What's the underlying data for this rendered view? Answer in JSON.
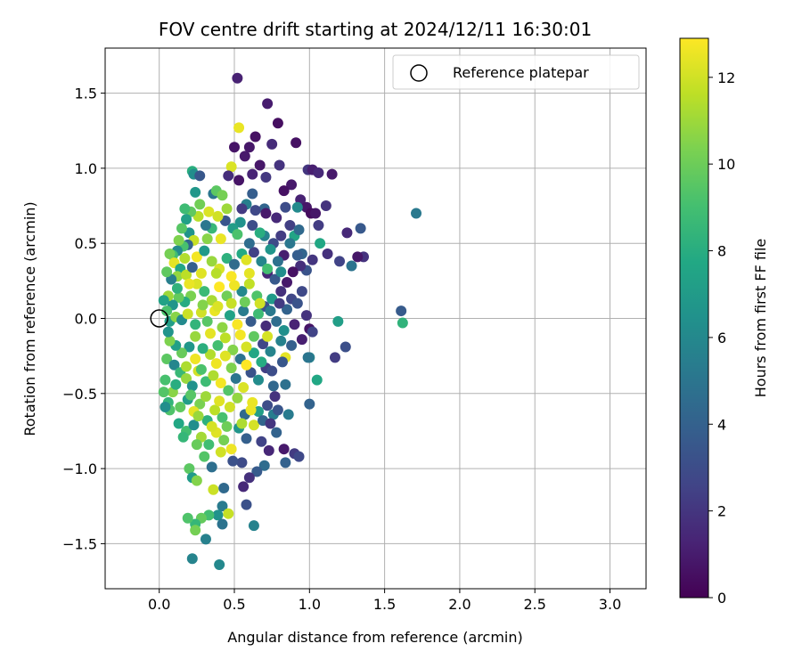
{
  "chart_data": {
    "type": "scatter",
    "title": "FOV centre drift starting at 2024/12/11 16:30:01",
    "xlabel": "Angular distance from reference (arcmin)",
    "ylabel": "Rotation from reference (arcmin)",
    "xlim": [
      -0.36,
      3.24
    ],
    "ylim": [
      -1.8,
      1.8
    ],
    "x_ticks": [
      0.0,
      0.5,
      1.0,
      1.5,
      2.0,
      2.5,
      3.0
    ],
    "x_tick_labels": [
      "0.0",
      "0.5",
      "1.0",
      "1.5",
      "2.0",
      "2.5",
      "3.0"
    ],
    "y_ticks": [
      -1.5,
      -1.0,
      -0.5,
      0.0,
      0.5,
      1.0,
      1.5
    ],
    "y_tick_labels": [
      "−1.5",
      "−1.0",
      "−0.5",
      "0.0",
      "0.5",
      "1.0",
      "1.5"
    ],
    "grid": true,
    "legend": {
      "placement": "top-right",
      "entries": [
        "Reference platepar"
      ]
    },
    "reference_point": {
      "x": 0.0,
      "y": 0.0
    },
    "colorbar": {
      "label": "Hours from first FF file",
      "range": [
        0,
        12.9
      ],
      "ticks": [
        0,
        2,
        4,
        6,
        8,
        10,
        12
      ],
      "tick_labels": [
        "0",
        "2",
        "4",
        "6",
        "8",
        "10",
        "12"
      ],
      "colormap": "viridis"
    },
    "points": [
      [
        0.52,
        1.6,
        1.2
      ],
      [
        0.72,
        1.43,
        1.0
      ],
      [
        0.79,
        1.3,
        0.5
      ],
      [
        0.53,
        1.27,
        12.5
      ],
      [
        0.64,
        1.21,
        0.6
      ],
      [
        0.5,
        1.14,
        0.7
      ],
      [
        0.6,
        1.14,
        0.8
      ],
      [
        0.75,
        1.16,
        1.6
      ],
      [
        0.91,
        1.17,
        0.6
      ],
      [
        0.48,
        1.01,
        12.2
      ],
      [
        0.57,
        1.08,
        0.9
      ],
      [
        0.67,
        1.02,
        0.8
      ],
      [
        0.8,
        1.02,
        1.9
      ],
      [
        0.99,
        0.99,
        2.0
      ],
      [
        1.02,
        0.99,
        1.1
      ],
      [
        1.06,
        0.97,
        1.5
      ],
      [
        1.15,
        0.96,
        0.9
      ],
      [
        0.62,
        0.96,
        1.3
      ],
      [
        0.46,
        0.95,
        1.7
      ],
      [
        0.53,
        0.92,
        0.7
      ],
      [
        0.71,
        0.94,
        2.1
      ],
      [
        0.88,
        0.89,
        0.9
      ],
      [
        0.22,
        0.98,
        8.1
      ],
      [
        0.23,
        0.96,
        6.3
      ],
      [
        0.27,
        0.95,
        3.5
      ],
      [
        0.36,
        0.83,
        5.0
      ],
      [
        0.38,
        0.85,
        9.6
      ],
      [
        0.24,
        0.84,
        6.8
      ],
      [
        0.42,
        0.82,
        10.2
      ],
      [
        0.62,
        0.83,
        3.8
      ],
      [
        0.83,
        0.85,
        0.6
      ],
      [
        0.94,
        0.79,
        1.2
      ],
      [
        1.11,
        0.75,
        1.9
      ],
      [
        0.98,
        0.74,
        0.8
      ],
      [
        1.01,
        0.7,
        0.4
      ],
      [
        1.04,
        0.7,
        0.8
      ],
      [
        0.84,
        0.74,
        3.0
      ],
      [
        0.92,
        0.74,
        6.1
      ],
      [
        0.7,
        0.73,
        4.2
      ],
      [
        0.58,
        0.76,
        5.5
      ],
      [
        0.55,
        0.73,
        2.2
      ],
      [
        0.64,
        0.72,
        2.8
      ],
      [
        0.71,
        0.7,
        0.9
      ],
      [
        0.78,
        0.67,
        1.5
      ],
      [
        0.87,
        0.62,
        2.4
      ],
      [
        0.9,
        0.55,
        7.5
      ],
      [
        0.93,
        0.59,
        4.4
      ],
      [
        1.06,
        0.62,
        2.3
      ],
      [
        1.25,
        0.57,
        1.5
      ],
      [
        1.34,
        0.6,
        3.6
      ],
      [
        1.36,
        0.41,
        1.9
      ],
      [
        1.32,
        0.41,
        0.8
      ],
      [
        1.28,
        0.35,
        4.9
      ],
      [
        1.2,
        0.38,
        2.6
      ],
      [
        1.12,
        0.43,
        1.8
      ],
      [
        1.07,
        0.5,
        7.7
      ],
      [
        1.02,
        0.39,
        2.0
      ],
      [
        0.98,
        0.32,
        3.3
      ],
      [
        0.95,
        0.43,
        4.2
      ],
      [
        0.83,
        0.42,
        1.1
      ],
      [
        0.76,
        0.5,
        2.9
      ],
      [
        0.7,
        0.55,
        5.7
      ],
      [
        0.62,
        0.62,
        3.0
      ],
      [
        0.54,
        0.64,
        6.5
      ],
      [
        0.49,
        0.6,
        7.1
      ],
      [
        0.44,
        0.65,
        3.4
      ],
      [
        0.39,
        0.68,
        12.0
      ],
      [
        0.35,
        0.6,
        8.6
      ],
      [
        0.31,
        0.62,
        5.1
      ],
      [
        0.26,
        0.68,
        11.5
      ],
      [
        0.21,
        0.71,
        9.7
      ],
      [
        0.18,
        0.66,
        7.3
      ],
      [
        0.2,
        0.57,
        6.6
      ],
      [
        0.23,
        0.52,
        11.8
      ],
      [
        0.19,
        0.49,
        4.2
      ],
      [
        0.16,
        0.48,
        9.1
      ],
      [
        0.13,
        0.52,
        10.4
      ],
      [
        0.12,
        0.45,
        6.2
      ],
      [
        0.09,
        0.42,
        8.9
      ],
      [
        0.07,
        0.43,
        10.2
      ],
      [
        0.1,
        0.37,
        12.4
      ],
      [
        0.14,
        0.33,
        7.6
      ],
      [
        0.12,
        0.28,
        10.8
      ],
      [
        0.08,
        0.26,
        5.5
      ],
      [
        0.18,
        0.29,
        11.6
      ],
      [
        0.22,
        0.34,
        3.9
      ],
      [
        0.25,
        0.41,
        12.7
      ],
      [
        0.3,
        0.45,
        6.9
      ],
      [
        0.35,
        0.38,
        10.9
      ],
      [
        0.4,
        0.33,
        12.1
      ],
      [
        0.45,
        0.4,
        8.2
      ],
      [
        0.5,
        0.36,
        4.5
      ],
      [
        0.55,
        0.43,
        7.8
      ],
      [
        0.58,
        0.39,
        12.3
      ],
      [
        0.63,
        0.44,
        2.5
      ],
      [
        0.68,
        0.38,
        5.9
      ],
      [
        0.72,
        0.3,
        1.4
      ],
      [
        0.77,
        0.26,
        3.6
      ],
      [
        0.81,
        0.31,
        6.3
      ],
      [
        0.85,
        0.24,
        0.9
      ],
      [
        0.81,
        0.18,
        1.8
      ],
      [
        0.88,
        0.13,
        2.7
      ],
      [
        0.85,
        0.06,
        4.1
      ],
      [
        0.75,
        0.13,
        7.0
      ],
      [
        0.7,
        0.08,
        3.2
      ],
      [
        0.65,
        0.15,
        9.3
      ],
      [
        0.6,
        0.23,
        11.7
      ],
      [
        0.55,
        0.18,
        6.0
      ],
      [
        0.5,
        0.22,
        12.6
      ],
      [
        0.45,
        0.15,
        10.1
      ],
      [
        0.4,
        0.21,
        12.9
      ],
      [
        0.35,
        0.12,
        11.2
      ],
      [
        0.3,
        0.18,
        8.7
      ],
      [
        0.25,
        0.23,
        12.2
      ],
      [
        0.21,
        0.15,
        10.3
      ],
      [
        0.17,
        0.11,
        7.9
      ],
      [
        0.13,
        0.14,
        9.8
      ],
      [
        0.09,
        0.09,
        6.7
      ],
      [
        0.06,
        0.15,
        11.0
      ],
      [
        0.05,
        0.05,
        9.2
      ],
      [
        0.07,
        -0.02,
        7.2
      ],
      [
        0.11,
        0.01,
        10.6
      ],
      [
        0.15,
        -0.01,
        6.1
      ],
      [
        0.19,
        0.03,
        11.9
      ],
      [
        0.24,
        -0.04,
        8.4
      ],
      [
        0.28,
        0.04,
        12.0
      ],
      [
        0.32,
        -0.02,
        9.5
      ],
      [
        0.37,
        0.05,
        12.5
      ],
      [
        0.42,
        -0.06,
        10.7
      ],
      [
        0.47,
        0.02,
        7.4
      ],
      [
        0.52,
        -0.04,
        12.8
      ],
      [
        0.56,
        0.05,
        5.3
      ],
      [
        0.61,
        -0.02,
        3.7
      ],
      [
        0.66,
        0.03,
        8.8
      ],
      [
        0.71,
        -0.05,
        1.6
      ],
      [
        0.78,
        -0.02,
        4.6
      ],
      [
        0.83,
        -0.08,
        6.4
      ],
      [
        0.9,
        -0.04,
        1.3
      ],
      [
        0.98,
        0.02,
        1.9
      ],
      [
        1.0,
        -0.07,
        0.7
      ],
      [
        1.02,
        -0.09,
        2.6
      ],
      [
        1.19,
        -0.02,
        7.2
      ],
      [
        1.61,
        0.05,
        3.7
      ],
      [
        1.62,
        -0.03,
        8.3
      ],
      [
        1.71,
        0.7,
        5.2
      ],
      [
        1.24,
        -0.19,
        3.1
      ],
      [
        1.17,
        -0.26,
        2.3
      ],
      [
        1.0,
        -0.26,
        5.6
      ],
      [
        0.84,
        -0.26,
        12.4
      ],
      [
        0.82,
        -0.29,
        3.5
      ],
      [
        0.74,
        -0.22,
        5.8
      ],
      [
        0.69,
        -0.17,
        2.7
      ],
      [
        0.63,
        -0.23,
        7.6
      ],
      [
        0.58,
        -0.19,
        12.1
      ],
      [
        0.54,
        -0.27,
        4.9
      ],
      [
        0.49,
        -0.21,
        10.5
      ],
      [
        0.44,
        -0.25,
        12.3
      ],
      [
        0.39,
        -0.18,
        9.0
      ],
      [
        0.34,
        -0.24,
        11.4
      ],
      [
        0.29,
        -0.2,
        8.1
      ],
      [
        0.24,
        -0.27,
        12.6
      ],
      [
        0.2,
        -0.19,
        6.8
      ],
      [
        0.15,
        -0.23,
        9.9
      ],
      [
        0.11,
        -0.18,
        7.3
      ],
      [
        0.07,
        -0.15,
        10.4
      ],
      [
        0.05,
        -0.27,
        9.6
      ],
      [
        0.1,
        -0.31,
        5.9
      ],
      [
        0.14,
        -0.36,
        8.6
      ],
      [
        0.18,
        -0.4,
        10.9
      ],
      [
        0.22,
        -0.45,
        6.5
      ],
      [
        0.26,
        -0.35,
        12.0
      ],
      [
        0.31,
        -0.42,
        8.8
      ],
      [
        0.36,
        -0.38,
        11.3
      ],
      [
        0.41,
        -0.43,
        12.7
      ],
      [
        0.46,
        -0.48,
        9.4
      ],
      [
        0.51,
        -0.4,
        5.0
      ],
      [
        0.56,
        -0.46,
        12.2
      ],
      [
        0.61,
        -0.36,
        3.3
      ],
      [
        0.66,
        -0.41,
        6.2
      ],
      [
        0.71,
        -0.33,
        2.4
      ],
      [
        0.76,
        -0.45,
        4.3
      ],
      [
        0.84,
        -0.44,
        4.8
      ],
      [
        0.77,
        -0.52,
        1.9
      ],
      [
        0.72,
        -0.58,
        3.0
      ],
      [
        0.66,
        -0.62,
        7.2
      ],
      [
        0.62,
        -0.56,
        12.5
      ],
      [
        0.57,
        -0.64,
        4.4
      ],
      [
        0.52,
        -0.53,
        10.8
      ],
      [
        0.47,
        -0.59,
        12.0
      ],
      [
        0.42,
        -0.66,
        9.1
      ],
      [
        0.37,
        -0.61,
        11.6
      ],
      [
        0.32,
        -0.68,
        8.2
      ],
      [
        0.27,
        -0.57,
        10.3
      ],
      [
        0.23,
        -0.62,
        12.4
      ],
      [
        0.19,
        -0.54,
        7.1
      ],
      [
        0.14,
        -0.59,
        9.7
      ],
      [
        0.09,
        -0.49,
        10.6
      ],
      [
        0.06,
        -0.56,
        8.4
      ],
      [
        0.07,
        -0.61,
        9.3
      ],
      [
        0.13,
        -0.7,
        7.7
      ],
      [
        0.18,
        -0.75,
        9.0
      ],
      [
        0.23,
        -0.71,
        6.3
      ],
      [
        0.28,
        -0.79,
        11.1
      ],
      [
        0.33,
        -0.84,
        8.9
      ],
      [
        0.38,
        -0.76,
        12.3
      ],
      [
        0.43,
        -0.81,
        10.2
      ],
      [
        0.48,
        -0.87,
        12.6
      ],
      [
        0.53,
        -0.73,
        6.7
      ],
      [
        0.58,
        -0.8,
        3.9
      ],
      [
        0.63,
        -0.71,
        12.1
      ],
      [
        0.68,
        -0.82,
        2.6
      ],
      [
        0.73,
        -0.88,
        1.4
      ],
      [
        0.78,
        -0.76,
        4.1
      ],
      [
        0.83,
        -0.87,
        0.9
      ],
      [
        0.9,
        -0.9,
        2.2
      ],
      [
        0.93,
        -0.92,
        2.8
      ],
      [
        0.84,
        -0.96,
        4.0
      ],
      [
        0.76,
        -0.64,
        5.4
      ],
      [
        0.7,
        -0.98,
        4.6
      ],
      [
        0.65,
        -1.02,
        3.7
      ],
      [
        0.6,
        -1.06,
        1.8
      ],
      [
        0.55,
        -0.96,
        2.9
      ],
      [
        0.49,
        -0.95,
        3.2
      ],
      [
        0.41,
        -0.89,
        12.0
      ],
      [
        0.35,
        -0.99,
        4.7
      ],
      [
        0.3,
        -0.92,
        9.4
      ],
      [
        0.25,
        -0.84,
        9.9
      ],
      [
        0.2,
        -1.0,
        9.6
      ],
      [
        0.22,
        -1.06,
        7.0
      ],
      [
        0.25,
        -1.08,
        10.5
      ],
      [
        0.36,
        -1.14,
        11.9
      ],
      [
        0.43,
        -1.13,
        4.4
      ],
      [
        0.56,
        -1.12,
        1.5
      ],
      [
        0.58,
        -1.24,
        3.2
      ],
      [
        0.42,
        -1.25,
        5.3
      ],
      [
        0.46,
        -1.3,
        11.8
      ],
      [
        0.39,
        -1.31,
        6.5
      ],
      [
        0.33,
        -1.31,
        9.0
      ],
      [
        0.28,
        -1.33,
        9.8
      ],
      [
        0.24,
        -1.37,
        8.5
      ],
      [
        0.19,
        -1.33,
        9.3
      ],
      [
        0.24,
        -1.41,
        10.2
      ],
      [
        0.31,
        -1.47,
        5.6
      ],
      [
        0.42,
        -1.37,
        4.9
      ],
      [
        0.63,
        -1.38,
        5.7
      ],
      [
        0.22,
        -1.6,
        5.8
      ],
      [
        0.4,
        -1.64,
        6.0
      ],
      [
        0.05,
        0.31,
        9.7
      ],
      [
        0.03,
        0.12,
        7.4
      ],
      [
        0.06,
        -0.09,
        6.6
      ],
      [
        0.04,
        -0.41,
        9.1
      ],
      [
        0.03,
        -0.49,
        9.4
      ],
      [
        0.04,
        -0.59,
        6.3
      ],
      [
        0.15,
        0.6,
        9.5
      ],
      [
        0.17,
        0.73,
        8.8
      ],
      [
        0.27,
        0.76,
        10.1
      ],
      [
        0.33,
        0.71,
        12.2
      ],
      [
        0.45,
        0.73,
        11.0
      ],
      [
        0.32,
        0.53,
        10.6
      ],
      [
        0.41,
        0.53,
        12.5
      ],
      [
        0.52,
        0.56,
        9.2
      ],
      [
        0.6,
        0.5,
        4.6
      ],
      [
        0.67,
        0.57,
        8.0
      ],
      [
        0.74,
        0.46,
        6.7
      ],
      [
        0.81,
        0.55,
        2.3
      ],
      [
        0.87,
        0.5,
        5.1
      ],
      [
        0.92,
        0.42,
        3.8
      ],
      [
        0.94,
        0.35,
        1.7
      ],
      [
        0.79,
        0.38,
        4.8
      ],
      [
        0.72,
        0.33,
        9.0
      ],
      [
        0.6,
        0.3,
        12.4
      ],
      [
        0.48,
        0.28,
        12.8
      ],
      [
        0.38,
        0.3,
        11.5
      ],
      [
        0.28,
        0.3,
        12.3
      ],
      [
        0.17,
        0.4,
        11.4
      ],
      [
        0.12,
        0.2,
        8.3
      ],
      [
        0.2,
        0.23,
        12.5
      ],
      [
        0.29,
        0.09,
        10.5
      ],
      [
        0.39,
        0.08,
        12.2
      ],
      [
        0.48,
        0.1,
        11.8
      ],
      [
        0.57,
        0.11,
        10.0
      ],
      [
        0.67,
        0.1,
        12.0
      ],
      [
        0.74,
        0.05,
        5.2
      ],
      [
        0.8,
        0.1,
        2.2
      ],
      [
        0.92,
        0.1,
        3.3
      ],
      [
        0.95,
        0.18,
        2.8
      ],
      [
        0.89,
        0.31,
        0.6
      ],
      [
        0.24,
        -0.12,
        10.9
      ],
      [
        0.34,
        -0.1,
        12.4
      ],
      [
        0.44,
        -0.13,
        11.6
      ],
      [
        0.54,
        -0.11,
        12.7
      ],
      [
        0.63,
        -0.12,
        9.7
      ],
      [
        0.72,
        -0.12,
        12.1
      ],
      [
        0.81,
        -0.15,
        5.7
      ],
      [
        0.88,
        -0.18,
        3.9
      ],
      [
        0.95,
        -0.14,
        1.1
      ],
      [
        0.18,
        -0.32,
        11.3
      ],
      [
        0.28,
        -0.34,
        9.2
      ],
      [
        0.38,
        -0.3,
        12.6
      ],
      [
        0.48,
        -0.33,
        10.4
      ],
      [
        0.58,
        -0.31,
        12.9
      ],
      [
        0.68,
        -0.29,
        7.9
      ],
      [
        0.75,
        -0.35,
        3.0
      ],
      [
        0.11,
        -0.44,
        8.0
      ],
      [
        0.21,
        -0.51,
        9.5
      ],
      [
        0.31,
        -0.52,
        11.0
      ],
      [
        0.4,
        -0.55,
        12.3
      ],
      [
        0.61,
        -0.61,
        12.5
      ],
      [
        0.69,
        -0.68,
        4.2
      ],
      [
        0.55,
        -0.7,
        11.3
      ],
      [
        0.45,
        -0.72,
        10.0
      ],
      [
        0.35,
        -0.72,
        12.1
      ],
      [
        0.16,
        -0.79,
        8.5
      ],
      [
        0.26,
        -0.65,
        10.9
      ],
      [
        0.74,
        -0.7,
        2.0
      ],
      [
        0.79,
        -0.61,
        3.4
      ],
      [
        0.86,
        -0.64,
        5.3
      ],
      [
        1.0,
        -0.57,
        4.1
      ],
      [
        1.05,
        -0.41,
        7.7
      ],
      [
        0.99,
        -0.26,
        5.0
      ]
    ]
  }
}
